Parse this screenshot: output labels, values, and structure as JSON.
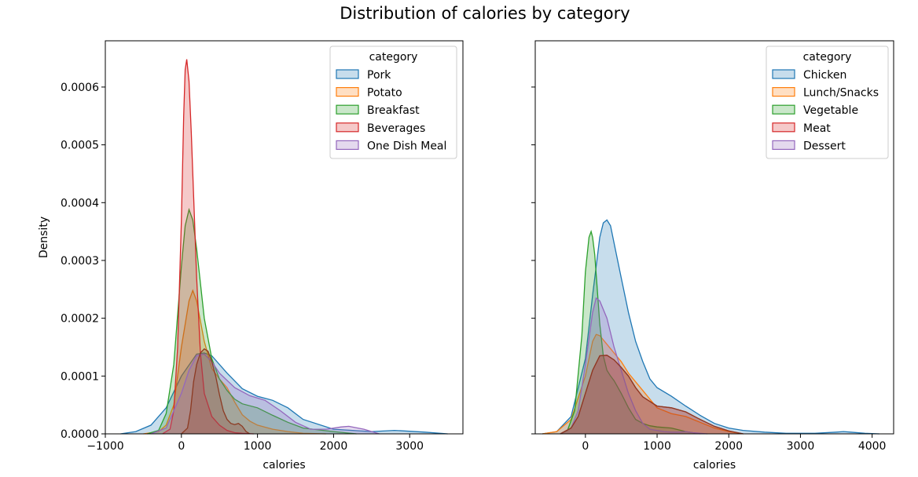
{
  "title": "Distribution of calories by category",
  "chart_data": [
    {
      "type": "area",
      "subtype": "kde",
      "xlabel": "calories",
      "ylabel": "Density",
      "xlim": [
        -1000,
        3700
      ],
      "ylim": [
        0,
        0.00068
      ],
      "xticks": [
        -1000,
        0,
        1000,
        2000,
        3000
      ],
      "yticks": [
        0,
        0.0001,
        0.0002,
        0.0003,
        0.0004,
        0.0005,
        0.0006
      ],
      "ytick_labels": [
        "0.0000",
        "0.0001",
        "0.0002",
        "0.0003",
        "0.0004",
        "0.0005",
        "0.0006"
      ],
      "legend_title": "category",
      "legend_position": "top-right",
      "series": [
        {
          "name": "Pork",
          "color": "#1f77b4",
          "x": [
            -800,
            -600,
            -400,
            -200,
            0,
            200,
            300,
            400,
            600,
            800,
            1000,
            1200,
            1400,
            1600,
            2000,
            2500,
            2800,
            3200,
            3500
          ],
          "y": [
            0,
            4e-06,
            1.5e-05,
            4.5e-05,
            0.0001,
            0.000138,
            0.00014,
            0.000135,
            0.000105,
            7.8e-05,
            6.5e-05,
            5.8e-05,
            4.5e-05,
            2.5e-05,
            8e-06,
            4e-06,
            6e-06,
            3e-06,
            0
          ]
        },
        {
          "name": "Potato",
          "color": "#ff7f0e",
          "x": [
            -500,
            -300,
            -200,
            -100,
            0,
            100,
            150,
            200,
            300,
            400,
            500,
            600,
            700,
            800,
            900,
            1000,
            1200,
            1400,
            1600,
            1900
          ],
          "y": [
            0,
            4e-06,
            1.5e-05,
            5e-05,
            0.00015,
            0.00023,
            0.000248,
            0.00023,
            0.00016,
            0.000113,
            9.5e-05,
            8e-05,
            5.5e-05,
            3.3e-05,
            2.2e-05,
            1.5e-05,
            8e-06,
            4e-06,
            1e-06,
            0
          ]
        },
        {
          "name": "Breakfast",
          "color": "#2ca02c",
          "x": [
            -450,
            -300,
            -200,
            -100,
            0,
            50,
            100,
            150,
            200,
            300,
            400,
            500,
            600,
            700,
            800,
            1000,
            1200,
            1400,
            1600,
            2000,
            2300
          ],
          "y": [
            0,
            6e-06,
            3.5e-05,
            0.00012,
            0.00029,
            0.00036,
            0.000388,
            0.00037,
            0.00032,
            0.0002,
            0.00013,
            9.5e-05,
            7.5e-05,
            6e-05,
            5.2e-05,
            4.5e-05,
            3.2e-05,
            2e-05,
            1e-05,
            4e-06,
            0
          ]
        },
        {
          "name": "Beverages",
          "color": "#d62728",
          "x": [
            -250,
            -150,
            -100,
            -50,
            0,
            30,
            50,
            70,
            100,
            130,
            150,
            200,
            250,
            300,
            400,
            500,
            600,
            700,
            800,
            950
          ],
          "y": [
            0,
            8e-06,
            4e-05,
            0.00015,
            0.00037,
            0.00055,
            0.00063,
            0.000648,
            0.00061,
            0.00052,
            0.00045,
            0.00027,
            0.00014,
            7e-05,
            3e-05,
            1.5e-05,
            6e-06,
            2e-06,
            1e-06,
            0
          ]
        },
        {
          "name": "One Dish Meal",
          "color": "#9467bd",
          "x": [
            -400,
            -200,
            0,
            100,
            200,
            300,
            400,
            500,
            700,
            900,
            1100,
            1300,
            1500,
            1700,
            1900,
            2100,
            2200,
            2400,
            2600
          ],
          "y": [
            0,
            1e-05,
            7e-05,
            0.00011,
            0.000135,
            0.000138,
            0.000125,
            0.000105,
            8e-05,
            6.6e-05,
            5.8e-05,
            4e-05,
            2e-05,
            8e-06,
            8e-06,
            1.2e-05,
            1.3e-05,
            8e-06,
            0
          ]
        },
        {
          "name": "",
          "color": "#8c3a22",
          "x": [
            0,
            80,
            120,
            160,
            200,
            250,
            300,
            350,
            400,
            450,
            500,
            550,
            600,
            650,
            700,
            750,
            800,
            850,
            900
          ],
          "y": [
            0,
            1e-05,
            4e-05,
            9e-05,
            0.00012,
            0.00014,
            0.000147,
            0.000143,
            0.000125,
            0.0001,
            6.8e-05,
            4e-05,
            2.5e-05,
            1.8e-05,
            1.6e-05,
            1.8e-05,
            1.3e-05,
            4e-06,
            0
          ]
        }
      ]
    },
    {
      "type": "area",
      "subtype": "kde",
      "xlabel": "calories",
      "ylabel": "",
      "xlim": [
        -700,
        4300
      ],
      "ylim": [
        0,
        0.00068
      ],
      "xticks": [
        0,
        1000,
        2000,
        3000,
        4000
      ],
      "yticks": [
        0,
        0.0001,
        0.0002,
        0.0003,
        0.0004,
        0.0005,
        0.0006
      ],
      "ytick_labels": [],
      "legend_title": "category",
      "legend_position": "top-right",
      "series": [
        {
          "name": "Chicken",
          "color": "#1f77b4",
          "x": [
            -600,
            -400,
            -200,
            0,
            100,
            200,
            250,
            300,
            350,
            400,
            500,
            600,
            700,
            800,
            900,
            1000,
            1200,
            1400,
            1600,
            1800,
            2000,
            2200,
            2500,
            2800,
            3200,
            3500,
            3600,
            3700,
            3900,
            4100
          ],
          "y": [
            0,
            4e-06,
            3e-05,
            0.00013,
            0.00024,
            0.00034,
            0.000365,
            0.00037,
            0.00036,
            0.00033,
            0.00027,
            0.00021,
            0.00016,
            0.000125,
            9.5e-05,
            8e-05,
            6.5e-05,
            4.8e-05,
            3.2e-05,
            1.8e-05,
            1e-05,
            6e-06,
            3e-06,
            1e-06,
            1e-06,
            3e-06,
            4e-06,
            3e-06,
            1e-06,
            0
          ]
        },
        {
          "name": "Lunch/Snacks",
          "color": "#ff7f0e",
          "x": [
            -600,
            -400,
            -200,
            0,
            100,
            150,
            200,
            300,
            400,
            500,
            600,
            700,
            800,
            900,
            1000,
            1200,
            1400,
            1600,
            1800,
            2000,
            2200
          ],
          "y": [
            0,
            4e-06,
            2.5e-05,
            0.0001,
            0.00016,
            0.000172,
            0.00017,
            0.000155,
            0.00014,
            0.000125,
            0.000105,
            9e-05,
            7.5e-05,
            6e-05,
            4.5e-05,
            3.5e-05,
            3e-05,
            2e-05,
            1e-05,
            4e-06,
            0
          ]
        },
        {
          "name": "Vegetable",
          "color": "#2ca02c",
          "x": [
            -350,
            -250,
            -150,
            -50,
            0,
            50,
            80,
            100,
            130,
            160,
            200,
            250,
            300,
            350,
            400,
            500,
            600,
            700,
            800,
            900,
            1000,
            1200,
            1400,
            1600
          ],
          "y": [
            0,
            6e-06,
            4e-05,
            0.00017,
            0.00028,
            0.00034,
            0.00035,
            0.00034,
            0.00031,
            0.00026,
            0.00019,
            0.000135,
            0.00011,
            0.0001,
            9.2e-05,
            7e-05,
            4.5e-05,
            2.5e-05,
            1.8e-05,
            1.4e-05,
            1.2e-05,
            1e-05,
            4e-06,
            0
          ]
        },
        {
          "name": "Meat",
          "color": "#d62728",
          "x": [
            -350,
            -200,
            -100,
            0,
            100,
            200,
            300,
            400,
            500,
            600,
            700,
            800,
            1000,
            1200,
            1400,
            1600,
            1800,
            2000,
            2200
          ],
          "y": [
            0,
            1e-05,
            3e-05,
            7e-05,
            0.00011,
            0.000135,
            0.000136,
            0.000128,
            0.000115,
            0.0001,
            8e-05,
            6.4e-05,
            4.8e-05,
            4.5e-05,
            3.8e-05,
            2.5e-05,
            1.3e-05,
            5e-06,
            0
          ]
        },
        {
          "name": "Dessert",
          "color": "#9467bd",
          "x": [
            -350,
            -200,
            -100,
            0,
            100,
            150,
            200,
            300,
            400,
            500,
            600,
            700,
            800,
            900,
            1000,
            1100,
            1200,
            1300,
            1400,
            1500,
            1700
          ],
          "y": [
            0,
            1e-05,
            4e-05,
            0.00012,
            0.00021,
            0.000235,
            0.00023,
            0.0002,
            0.00015,
            0.00011,
            7e-05,
            4e-05,
            1.8e-05,
            8e-06,
            6e-06,
            4e-06,
            3e-06,
            3e-06,
            4e-06,
            2e-06,
            0
          ]
        },
        {
          "name": "",
          "color": "#8c3a22",
          "x": [
            -350,
            -200,
            -100,
            0,
            100,
            200,
            300,
            400,
            500,
            600,
            700,
            800,
            1000,
            1200,
            1400,
            1600,
            1800,
            2000,
            2200
          ],
          "y": [
            0,
            1e-05,
            3e-05,
            7e-05,
            0.00011,
            0.000135,
            0.000136,
            0.000128,
            0.000115,
            0.0001,
            8e-05,
            6.4e-05,
            4.8e-05,
            4.5e-05,
            3.8e-05,
            2.5e-05,
            1.3e-05,
            5e-06,
            0
          ]
        }
      ]
    }
  ]
}
